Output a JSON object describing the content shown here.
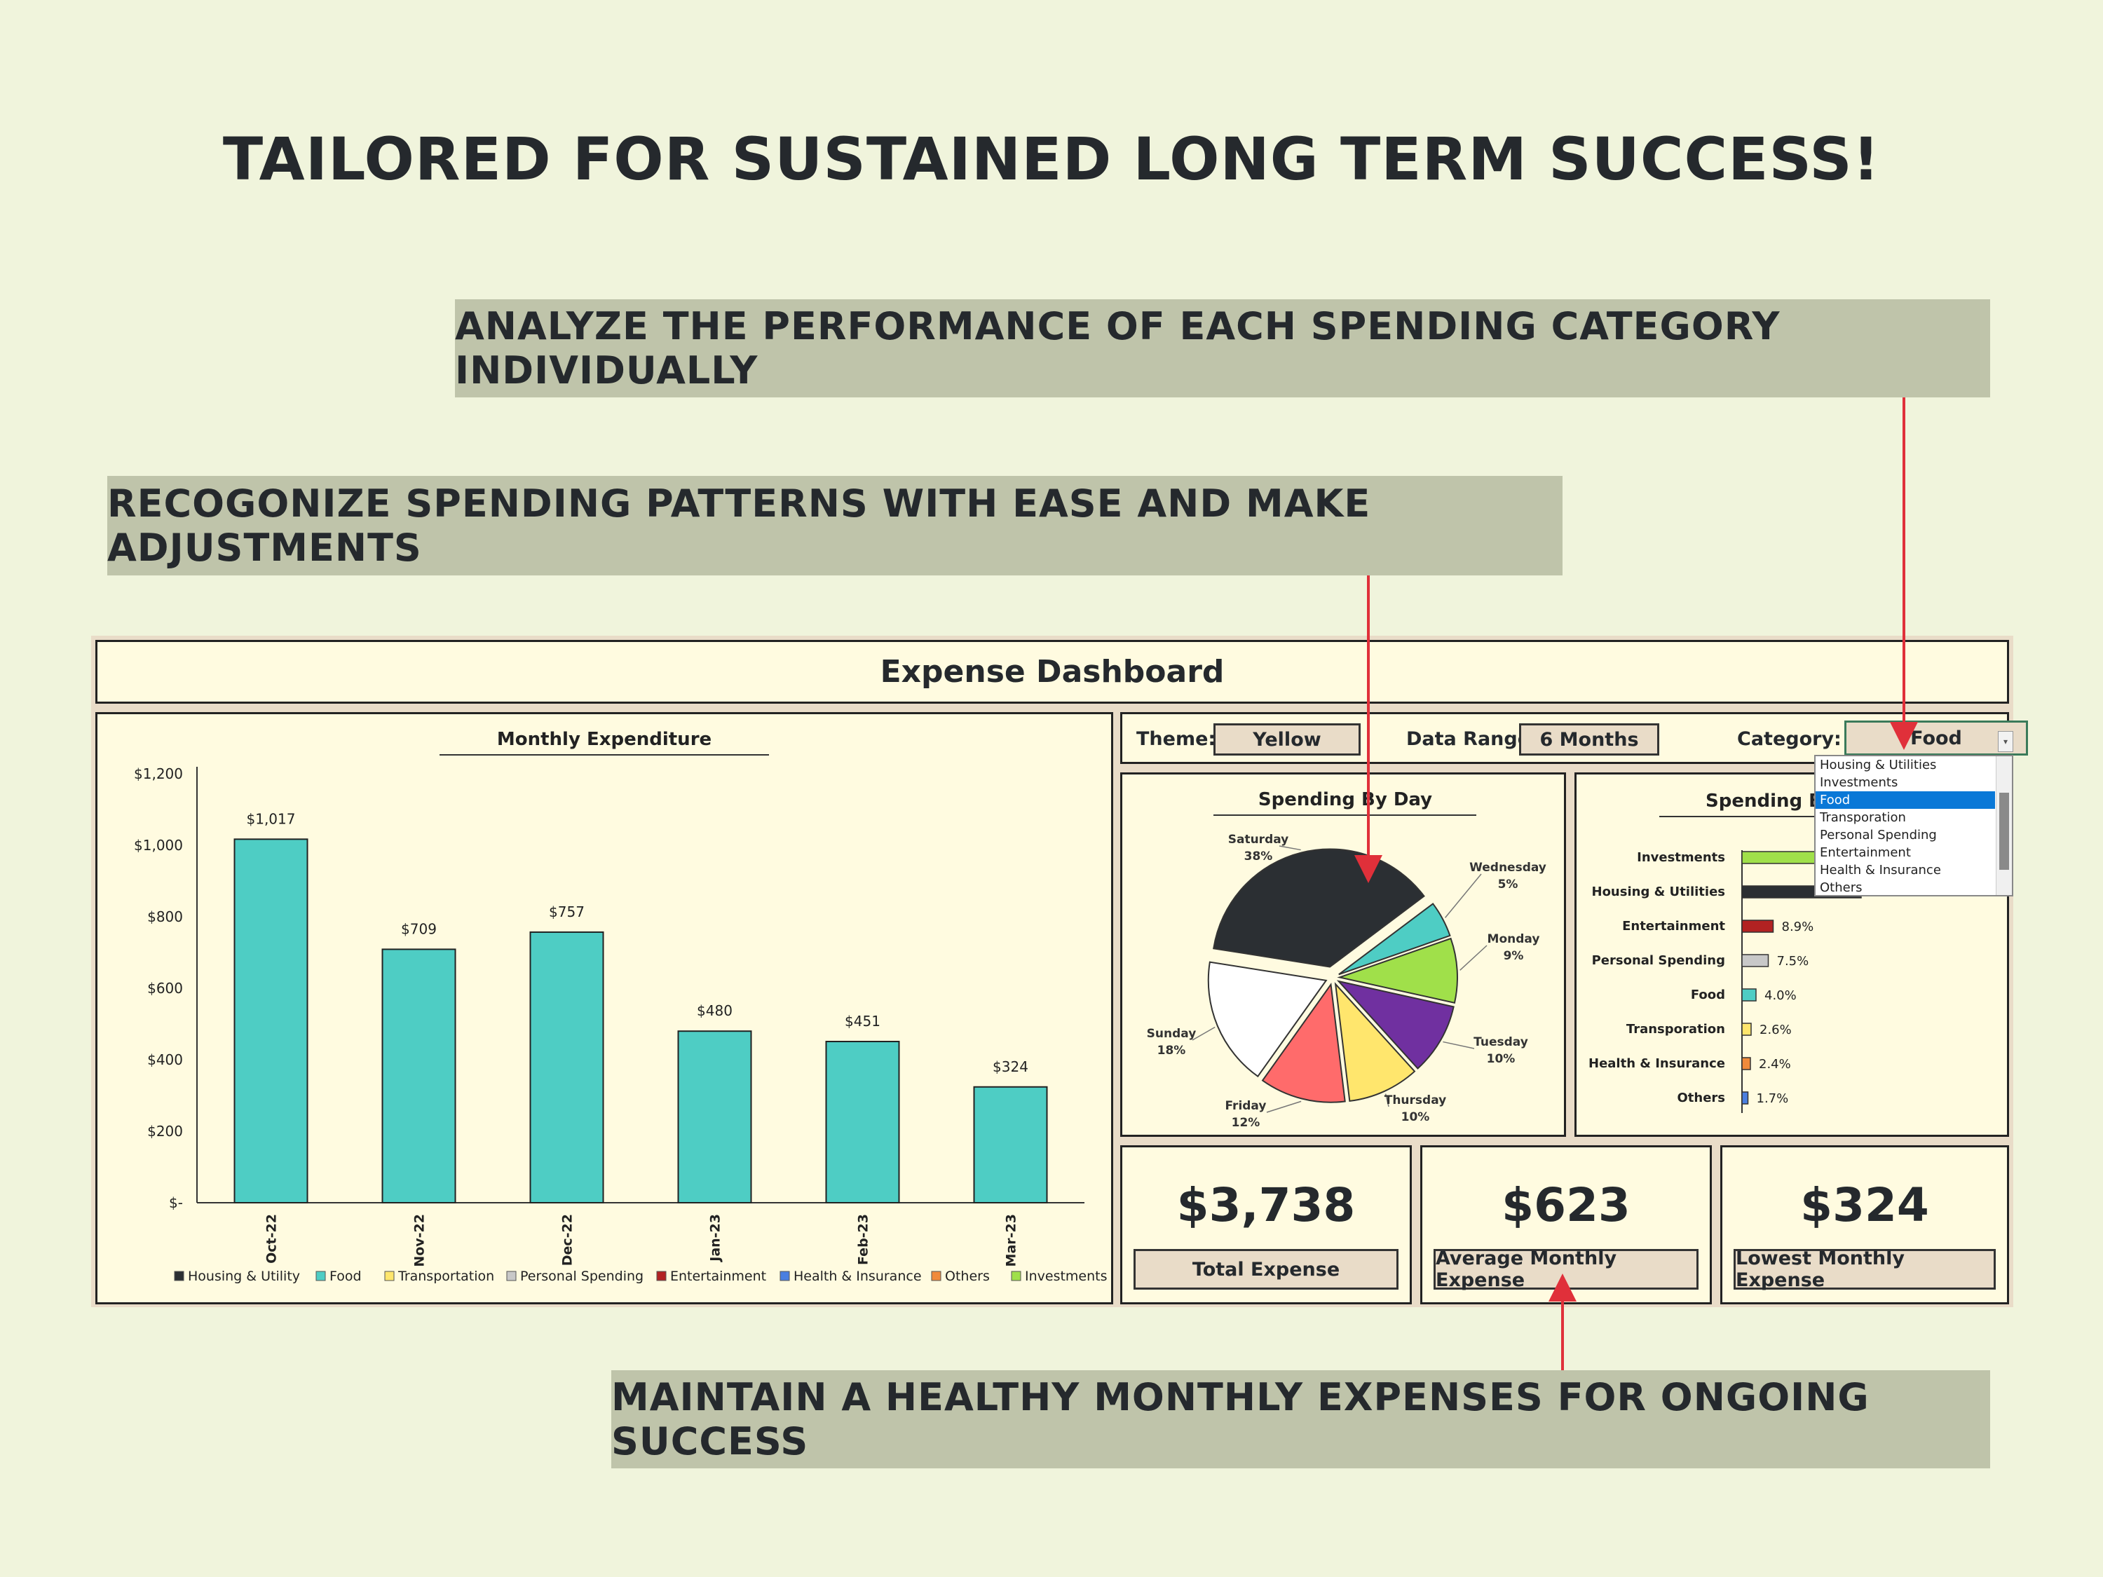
{
  "headline": "TAILORED FOR SUSTAINED LONG TERM SUCCESS!",
  "callouts": {
    "analyze": "ANALYZE THE PERFORMANCE OF EACH SPENDING CATEGORY INDIVIDUALLY",
    "recognize": "RECOGONIZE SPENDING PATTERNS WITH EASE AND MAKE ADJUSTMENTS",
    "maintain": "MAINTAIN A HEALTHY MONTHLY EXPENSES FOR ONGOING SUCCESS"
  },
  "colors": {
    "background": "#f0f4dc",
    "callout_bg": "#bfc4aa",
    "panel_bg": "#fffbe0",
    "accent_red": "#e0303a",
    "bar_teal": "#4ecdc4"
  },
  "dashboard": {
    "title": "Expense Dashboard",
    "controls": {
      "theme_label": "Theme:",
      "theme_value": "Yellow",
      "range_label": "Data Range:",
      "range_value": "6 Months",
      "category_label": "Category:",
      "category_value": "Food",
      "category_options": [
        "Housing & Utilities",
        "Investments",
        "Food",
        "Transporation",
        "Personal Spending",
        "Entertainment",
        "Health & Insurance",
        "Others"
      ],
      "selected_option": "Food"
    },
    "kpis": [
      {
        "value": "$3,738",
        "label": "Total Expense"
      },
      {
        "value": "$623",
        "label": "Average Monthly Expense"
      },
      {
        "value": "$324",
        "label": "Lowest Monthly Expense"
      }
    ]
  },
  "chart_data": [
    {
      "type": "bar",
      "title": "Monthly Expenditure",
      "categories": [
        "Oct-22",
        "Nov-22",
        "Dec-22",
        "Jan-23",
        "Feb-23",
        "Mar-23"
      ],
      "values": [
        1017,
        709,
        757,
        480,
        451,
        324
      ],
      "data_labels": [
        "$1,017",
        "$709",
        "$757",
        "$480",
        "$451",
        "$324"
      ],
      "ylim": [
        0,
        1200
      ],
      "yticks": [
        0,
        200,
        400,
        600,
        800,
        1000,
        1200
      ],
      "ytick_labels": [
        "$-",
        "$200",
        "$400",
        "$600",
        "$800",
        "$1,000",
        "$1,200"
      ],
      "bar_color": "#4ecdc4",
      "legend_position": "bottom",
      "legend": [
        {
          "name": "Housing & Utility",
          "color": "#2b2f33"
        },
        {
          "name": "Food",
          "color": "#4ecdc4"
        },
        {
          "name": "Transportation",
          "color": "#ffe66d"
        },
        {
          "name": "Personal Spending",
          "color": "#c8c8c8"
        },
        {
          "name": "Entertainment",
          "color": "#b22222"
        },
        {
          "name": "Health & Insurance",
          "color": "#4a7fe0"
        },
        {
          "name": "Others",
          "color": "#f08a3c"
        },
        {
          "name": "Investments",
          "color": "#a0e04a"
        }
      ]
    },
    {
      "type": "pie",
      "title": "Spending By Day",
      "slices": [
        {
          "label": "Wednesday",
          "pct_label": "5%",
          "value": 5,
          "color": "#4ecdc4"
        },
        {
          "label": "Monday",
          "pct_label": "9%",
          "value": 9,
          "color": "#a0e04a"
        },
        {
          "label": "Tuesday",
          "pct_label": "10%",
          "value": 10,
          "color": "#7030a0"
        },
        {
          "label": "Thursday",
          "pct_label": "10%",
          "value": 10,
          "color": "#ffe66d"
        },
        {
          "label": "Friday",
          "pct_label": "12%",
          "value": 12,
          "color": "#ff6b6b"
        },
        {
          "label": "Sunday",
          "pct_label": "18%",
          "value": 18,
          "color": "#ffffff"
        },
        {
          "label": "Saturday",
          "pct_label": "38%",
          "value": 38,
          "color": "#2b2f33"
        }
      ]
    },
    {
      "type": "bar",
      "orientation": "horizontal",
      "title": "Spending By",
      "categories": [
        "Investments",
        "Housing & Utilities",
        "Entertainment",
        "Personal Spending",
        "Food",
        "Transporation",
        "Health & Insurance",
        "Others"
      ],
      "values": [
        null,
        null,
        8.9,
        7.5,
        4.0,
        2.6,
        2.4,
        1.7
      ],
      "value_labels": [
        "",
        "",
        "8.9%",
        "7.5%",
        "4.0%",
        "2.6%",
        "2.4%",
        "1.7%"
      ],
      "colors": [
        "#a0e04a",
        "#2b2f33",
        "#b22222",
        "#c8c8c8",
        "#4ecdc4",
        "#ffe66d",
        "#f08a3c",
        "#4a7fe0"
      ]
    }
  ]
}
